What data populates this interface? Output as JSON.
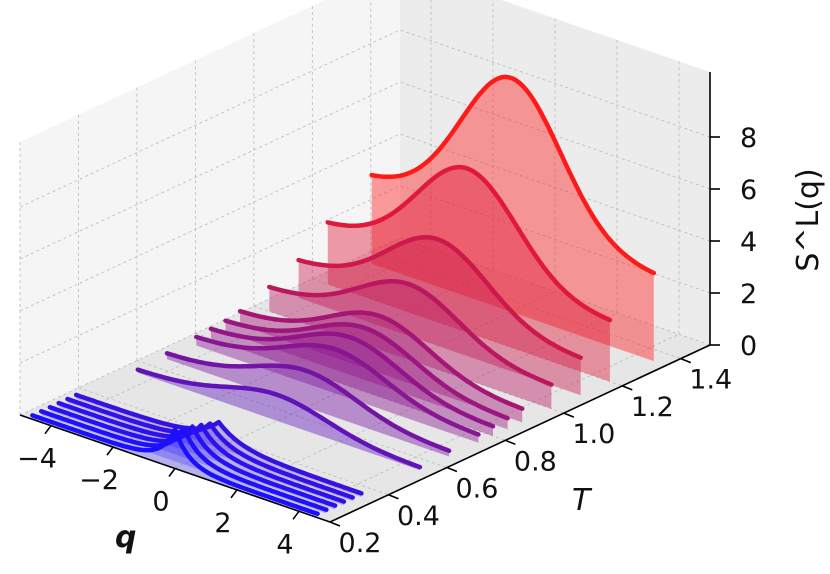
{
  "chart_data": {
    "type": "3d-waterfall",
    "title": "",
    "xlabel": "q",
    "ylabel": "T",
    "zlabel": "S^L(q)",
    "xlim": [
      -5,
      5
    ],
    "ylim": [
      0.2,
      1.5
    ],
    "zlim": [
      0,
      10
    ],
    "x_ticks": [
      "−4",
      "−2",
      "0",
      "2",
      "4"
    ],
    "y_ticks": [
      "0.2",
      "0.4",
      "0.6",
      "0.8",
      "1.0",
      "1.2",
      "1.4"
    ],
    "z_ticks": [
      "0",
      "2",
      "4",
      "6",
      "8"
    ],
    "grid": true,
    "colors": {
      "low_T": "#1a10ff",
      "high_T": "#ff1a1a",
      "pane": "#f2f2f2"
    },
    "series": [
      {
        "T": 0.2,
        "peak": 1.5,
        "baseline": 0.15,
        "width": 0.45
      },
      {
        "T": 0.23,
        "peak": 1.4,
        "baseline": 0.15,
        "width": 0.5
      },
      {
        "T": 0.26,
        "peak": 1.3,
        "baseline": 0.15,
        "width": 0.55
      },
      {
        "T": 0.29,
        "peak": 1.2,
        "baseline": 0.15,
        "width": 0.6
      },
      {
        "T": 0.32,
        "peak": 1.1,
        "baseline": 0.15,
        "width": 0.65
      },
      {
        "T": 0.35,
        "peak": 1.0,
        "baseline": 0.15,
        "width": 0.7
      },
      {
        "T": 0.55,
        "peak": 1.0,
        "baseline": 0.1,
        "width": 1.6
      },
      {
        "T": 0.65,
        "peak": 1.4,
        "baseline": 0.2,
        "width": 1.6
      },
      {
        "T": 0.75,
        "peak": 1.7,
        "baseline": 0.3,
        "width": 1.6
      },
      {
        "T": 0.8,
        "peak": 1.9,
        "baseline": 0.35,
        "width": 1.6
      },
      {
        "T": 0.85,
        "peak": 2.0,
        "baseline": 0.4,
        "width": 1.6
      },
      {
        "T": 0.9,
        "peak": 2.2,
        "baseline": 0.5,
        "width": 1.6
      },
      {
        "T": 1.0,
        "peak": 2.9,
        "baseline": 0.9,
        "width": 1.6
      },
      {
        "T": 1.1,
        "peak": 4.1,
        "baseline": 1.4,
        "width": 1.6
      },
      {
        "T": 1.2,
        "peak": 6.3,
        "baseline": 2.3,
        "width": 1.6
      },
      {
        "T": 1.35,
        "peak": 9.0,
        "baseline": 3.3,
        "width": 1.6
      }
    ]
  }
}
